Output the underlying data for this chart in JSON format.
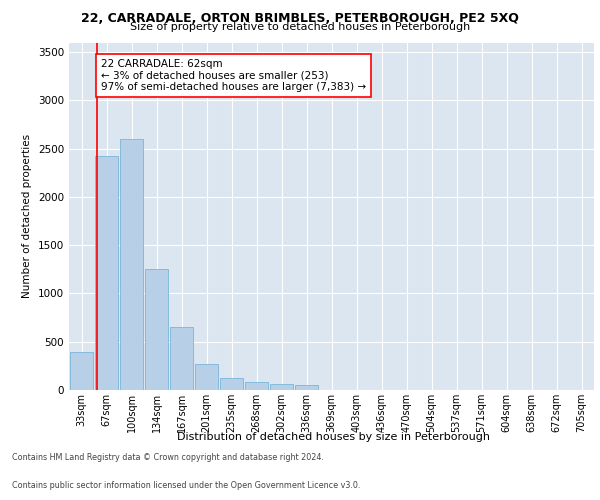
{
  "title": "22, CARRADALE, ORTON BRIMBLES, PETERBOROUGH, PE2 5XQ",
  "subtitle": "Size of property relative to detached houses in Peterborough",
  "xlabel": "Distribution of detached houses by size in Peterborough",
  "ylabel": "Number of detached properties",
  "categories": [
    "33sqm",
    "67sqm",
    "100sqm",
    "134sqm",
    "167sqm",
    "201sqm",
    "235sqm",
    "268sqm",
    "302sqm",
    "336sqm",
    "369sqm",
    "403sqm",
    "436sqm",
    "470sqm",
    "504sqm",
    "537sqm",
    "571sqm",
    "604sqm",
    "638sqm",
    "672sqm",
    "705sqm"
  ],
  "values": [
    390,
    2420,
    2600,
    1250,
    650,
    270,
    120,
    80,
    60,
    50,
    0,
    0,
    0,
    0,
    0,
    0,
    0,
    0,
    0,
    0,
    0
  ],
  "bar_color": "#b8cfe8",
  "bar_edge_color": "#6baed6",
  "fig_bg_color": "#ffffff",
  "plot_bg_color": "#dce6f0",
  "grid_color": "#ffffff",
  "annotation_box_text": "22 CARRADALE: 62sqm\n← 3% of detached houses are smaller (253)\n97% of semi-detached houses are larger (7,383) →",
  "vline_x_idx": 0.62,
  "ylim": [
    0,
    3600
  ],
  "yticks": [
    0,
    500,
    1000,
    1500,
    2000,
    2500,
    3000,
    3500
  ],
  "footer_line1": "Contains HM Land Registry data © Crown copyright and database right 2024.",
  "footer_line2": "Contains public sector information licensed under the Open Government Licence v3.0."
}
